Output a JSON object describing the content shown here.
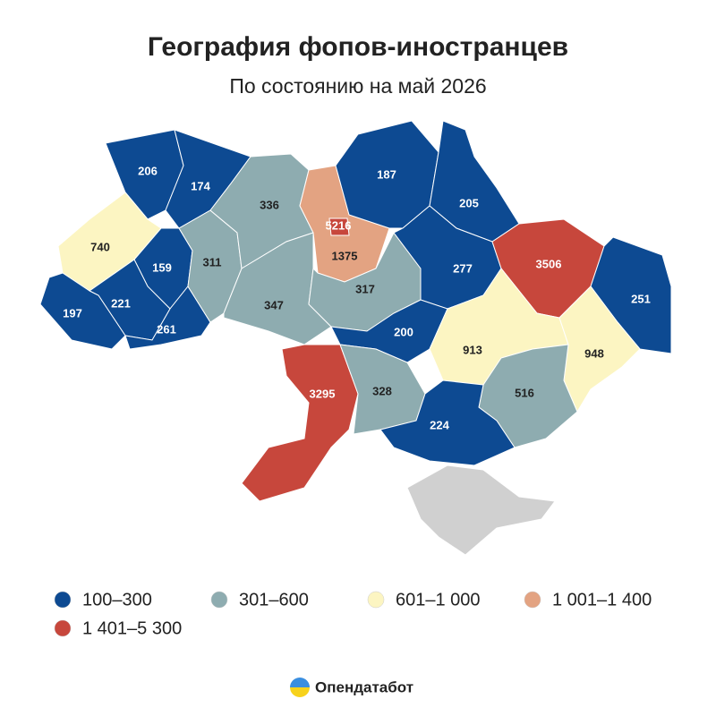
{
  "header": {
    "title": "География фопов-иностранцев",
    "subtitle": "По состоянию на май 2026"
  },
  "regions": [
    {
      "value": 206,
      "color": "#0d4a92"
    },
    {
      "value": 174,
      "color": "#0d4a92"
    },
    {
      "value": 740,
      "color": "#fcf5c2"
    },
    {
      "value": 159,
      "color": "#0d4a92"
    },
    {
      "value": 221,
      "color": "#0d4a92"
    },
    {
      "value": 197,
      "color": "#0d4a92"
    },
    {
      "value": 261,
      "color": "#0d4a92"
    },
    {
      "value": 311,
      "color": "#8eacb0"
    },
    {
      "value": 336,
      "color": "#8eacb0"
    },
    {
      "value": 347,
      "color": "#8eacb0"
    },
    {
      "value": 1375,
      "color": "#e3a382"
    },
    {
      "value": 5216,
      "color": "#c7473c"
    },
    {
      "value": 317,
      "color": "#8eacb0"
    },
    {
      "value": 187,
      "color": "#0d4a92"
    },
    {
      "value": 205,
      "color": "#0d4a92"
    },
    {
      "value": 277,
      "color": "#0d4a92"
    },
    {
      "value": 3506,
      "color": "#c7473c"
    },
    {
      "value": 251,
      "color": "#0d4a92"
    },
    {
      "value": 200,
      "color": "#0d4a92"
    },
    {
      "value": 913,
      "color": "#fcf5c2"
    },
    {
      "value": 948,
      "color": "#fcf5c2"
    },
    {
      "value": 3295,
      "color": "#c7473c"
    },
    {
      "value": 328,
      "color": "#8eacb0"
    },
    {
      "value": 516,
      "color": "#8eacb0"
    },
    {
      "value": 224,
      "color": "#0d4a92"
    }
  ],
  "legend": [
    {
      "label": "100–300",
      "color": "#0d4a92"
    },
    {
      "label": "301–600",
      "color": "#8eacb0"
    },
    {
      "label": "601–1 000",
      "color": "#fcf5c2"
    },
    {
      "label": "1 001–1 400",
      "color": "#e3a382"
    },
    {
      "label": "1 401–5 300",
      "color": "#c7473c"
    }
  ],
  "footer": {
    "brand": "Опендатабот"
  }
}
